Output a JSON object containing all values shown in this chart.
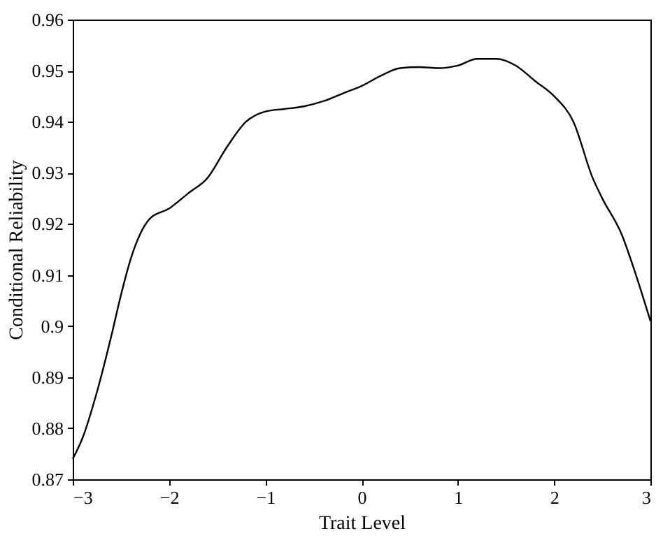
{
  "chart_data": {
    "type": "line",
    "xlabel": "Trait Level",
    "ylabel": "Conditional Reliability",
    "x": [
      -3,
      -2.9,
      -2.75,
      -2.6,
      -2.5,
      -2.4,
      -2.3,
      -2.2,
      -2.0,
      -1.8,
      -1.6,
      -1.4,
      -1.2,
      -1.0,
      -0.8,
      -0.6,
      -0.4,
      -0.2,
      0,
      0.2,
      0.4,
      0.6,
      0.8,
      1.0,
      1.2,
      1.4,
      1.6,
      1.8,
      2.0,
      2.2,
      2.4,
      2.5,
      2.7,
      2.85,
      3.0
    ],
    "series": [
      {
        "color": "#000000",
        "values": [
          0.874,
          0.878,
          0.887,
          0.898,
          0.906,
          0.913,
          0.918,
          0.921,
          0.923,
          0.926,
          0.929,
          0.935,
          0.94,
          0.942,
          0.9425,
          0.943,
          0.944,
          0.9455,
          0.947,
          0.949,
          0.9505,
          0.9507,
          0.9505,
          0.951,
          0.9523,
          0.9523,
          0.951,
          0.948,
          0.945,
          0.94,
          0.929,
          0.925,
          0.918,
          0.91,
          0.901
        ]
      }
    ],
    "xlim": [
      -3,
      3
    ],
    "xticks": [
      -3,
      -2,
      -1,
      0,
      1,
      2,
      3
    ],
    "ylim": [
      0.87,
      0.96
    ],
    "yticks": [
      0.87,
      0.88,
      0.89,
      0.9,
      0.91,
      0.92,
      0.93,
      0.94,
      0.95,
      0.96
    ],
    "grid": false,
    "marker": "none",
    "line_style": "solid"
  }
}
